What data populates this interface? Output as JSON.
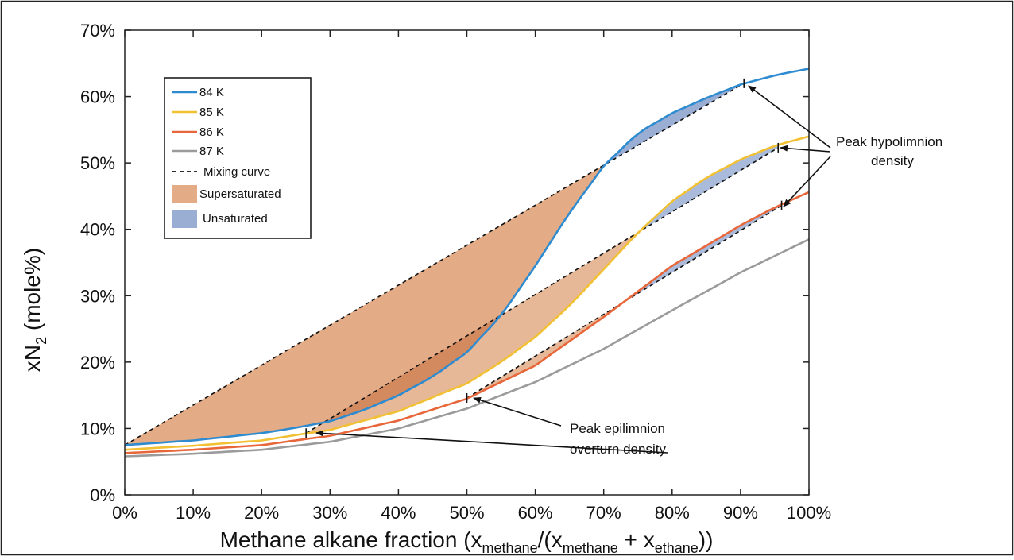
{
  "chart_data": {
    "type": "line",
    "xlabel": {
      "main": "Methane alkane fraction (x",
      "sub1": "methane",
      "mid": "/(x",
      "sub2": "methane",
      "plus": " + x",
      "sub3": "ethane",
      "end": "))"
    },
    "ylabel": {
      "main": "xN",
      "sub": "2",
      "end": " (mole%)"
    },
    "xlim": [
      0,
      100
    ],
    "ylim": [
      0,
      70
    ],
    "xticks": [
      "0%",
      "10%",
      "20%",
      "30%",
      "40%",
      "50%",
      "60%",
      "70%",
      "80%",
      "90%",
      "100%"
    ],
    "yticks": [
      "0%",
      "10%",
      "20%",
      "30%",
      "40%",
      "50%",
      "60%",
      "70%"
    ],
    "grid": false,
    "legend_position": "top-left",
    "series": [
      {
        "name": "84 K",
        "color": "#2f8bd0",
        "x": [
          0,
          10,
          20,
          25,
          30,
          35,
          40,
          45,
          50,
          55,
          60,
          65,
          70,
          75,
          80,
          85,
          90,
          95,
          100
        ],
        "y": [
          7.5,
          8.2,
          9.3,
          10.1,
          11.1,
          12.8,
          15.0,
          17.8,
          21.5,
          27.0,
          34.5,
          42.5,
          49.5,
          54.5,
          57.5,
          59.8,
          61.8,
          63.2,
          64.2
        ]
      },
      {
        "name": "85 K",
        "color": "#f2c033",
        "x": [
          0,
          10,
          20,
          30,
          40,
          50,
          55,
          60,
          65,
          70,
          75,
          80,
          85,
          90,
          95,
          100
        ],
        "y": [
          6.8,
          7.4,
          8.2,
          9.8,
          12.6,
          16.8,
          20.0,
          23.8,
          28.5,
          34.0,
          39.5,
          44.2,
          47.8,
          50.5,
          52.6,
          54.0
        ]
      },
      {
        "name": "86 K",
        "color": "#e8673a",
        "x": [
          0,
          10,
          20,
          30,
          40,
          50,
          60,
          70,
          80,
          90,
          95,
          100
        ],
        "y": [
          6.3,
          6.8,
          7.5,
          8.9,
          11.2,
          14.5,
          19.5,
          26.8,
          34.5,
          40.6,
          43.3,
          45.6
        ]
      },
      {
        "name": "87 K",
        "color": "#9b9b9b",
        "x": [
          0,
          10,
          20,
          30,
          40,
          50,
          60,
          70,
          80,
          90,
          100
        ],
        "y": [
          5.8,
          6.2,
          6.8,
          8.0,
          10.0,
          13.0,
          17.0,
          22.0,
          27.8,
          33.5,
          38.5
        ]
      }
    ],
    "mixing_curves": [
      {
        "x": [
          0,
          90.5
        ],
        "y": [
          7.5,
          62.0
        ]
      },
      {
        "x": [
          26.5,
          95.5
        ],
        "y": [
          9.3,
          52.3
        ]
      },
      {
        "x": [
          50.0,
          96.0
        ],
        "y": [
          14.6,
          43.6
        ]
      }
    ],
    "legend_extra": {
      "mixing": "Mixing curve",
      "supersaturated": "Supersaturated",
      "unsaturated": "Unsaturated"
    },
    "colors": {
      "supersaturated": "#e3ab86",
      "supersaturated_overlap": "#d38a5f",
      "unsaturated": "#9aaed4"
    },
    "annotations": {
      "hypolimnion": {
        "line1": "Peak hypolimnion",
        "line2": "density"
      },
      "epilimnion": {
        "line1": "Peak epilimnion",
        "line2": "overturn density"
      }
    }
  }
}
